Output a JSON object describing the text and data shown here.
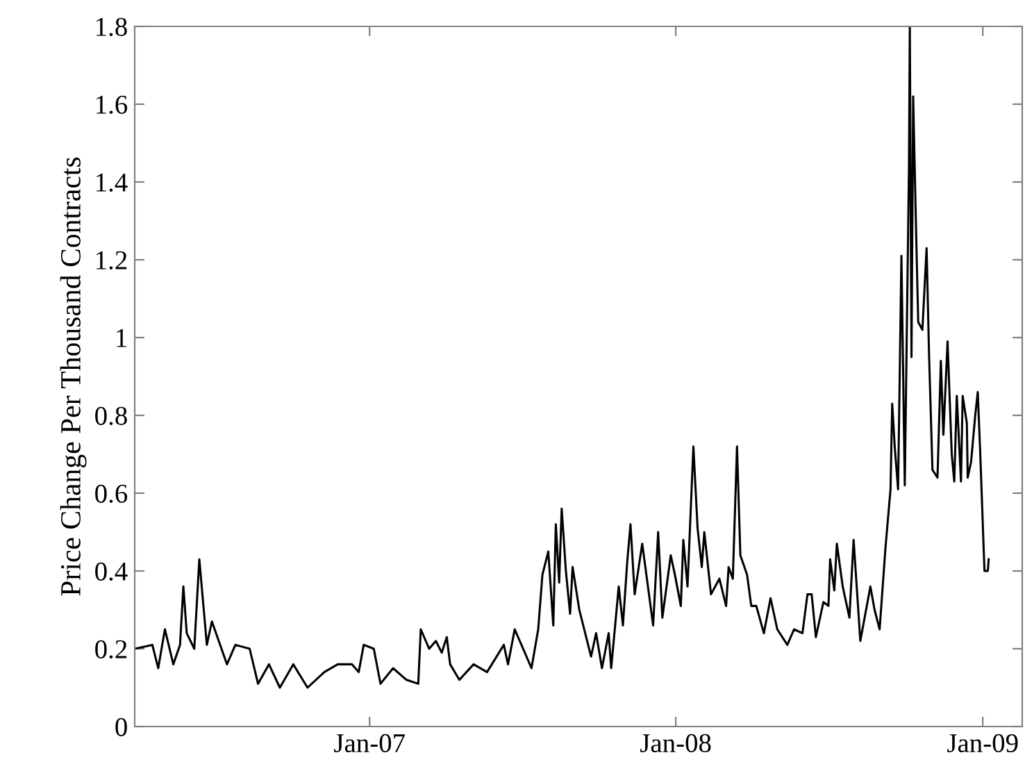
{
  "chart_data": {
    "type": "line",
    "ylabel": "Price Change Per Thousand Contracts",
    "xlim": [
      "2006-03-27",
      "2009-02-17"
    ],
    "ylim": [
      0,
      1.8
    ],
    "xticks": [
      {
        "value": "2007-01-01",
        "label": "Jan-07"
      },
      {
        "value": "2008-01-01",
        "label": "Jan-08"
      },
      {
        "value": "2009-01-01",
        "label": "Jan-09"
      }
    ],
    "yticks": [
      0,
      0.2,
      0.4,
      0.6,
      0.8,
      1,
      1.2,
      1.4,
      1.6,
      1.8
    ],
    "marker": "none",
    "line_style": "solid",
    "series": [
      {
        "color": "#000000",
        "x": [
          "2006-03-27",
          "2006-04-17",
          "2006-04-24",
          "2006-05-02",
          "2006-05-12",
          "2006-05-20",
          "2006-05-24",
          "2006-05-28",
          "2006-06-06",
          "2006-06-12",
          "2006-06-21",
          "2006-06-27",
          "2006-07-15",
          "2006-07-25",
          "2006-08-11",
          "2006-08-21",
          "2006-09-03",
          "2006-09-16",
          "2006-10-02",
          "2006-10-19",
          "2006-11-08",
          "2006-11-24",
          "2006-12-11",
          "2006-12-19",
          "2006-12-25",
          "2007-01-06",
          "2007-01-14",
          "2007-01-29",
          "2007-02-14",
          "2007-02-28",
          "2007-03-03",
          "2007-03-13",
          "2007-03-21",
          "2007-03-28",
          "2007-04-03",
          "2007-04-07",
          "2007-04-18",
          "2007-05-05",
          "2007-05-21",
          "2007-06-10",
          "2007-06-15",
          "2007-06-23",
          "2007-07-13",
          "2007-07-21",
          "2007-07-26",
          "2007-08-02",
          "2007-08-08",
          "2007-08-11",
          "2007-08-15",
          "2007-08-18",
          "2007-08-23",
          "2007-08-28",
          "2007-08-31",
          "2007-09-08",
          "2007-09-22",
          "2007-09-28",
          "2007-10-05",
          "2007-10-13",
          "2007-10-16",
          "2007-10-25",
          "2007-10-30",
          "2007-11-04",
          "2007-11-08",
          "2007-11-13",
          "2007-11-22",
          "2007-12-05",
          "2007-12-11",
          "2007-12-16",
          "2007-12-26",
          "2007-12-31",
          "2008-01-07",
          "2008-01-10",
          "2008-01-15",
          "2008-01-22",
          "2008-01-27",
          "2008-02-01",
          "2008-02-04",
          "2008-02-12",
          "2008-02-22",
          "2008-03-01",
          "2008-03-04",
          "2008-03-09",
          "2008-03-14",
          "2008-03-18",
          "2008-03-26",
          "2008-03-31",
          "2008-04-06",
          "2008-04-15",
          "2008-04-23",
          "2008-05-01",
          "2008-05-13",
          "2008-05-21",
          "2008-05-31",
          "2008-06-06",
          "2008-06-11",
          "2008-06-16",
          "2008-06-25",
          "2008-07-01",
          "2008-07-03",
          "2008-07-08",
          "2008-07-11",
          "2008-07-18",
          "2008-07-26",
          "2008-07-31",
          "2008-08-08",
          "2008-08-20",
          "2008-08-25",
          "2008-08-31",
          "2008-09-07",
          "2008-09-13",
          "2008-09-15",
          "2008-09-18",
          "2008-09-22",
          "2008-09-26",
          "2008-09-30",
          "2008-10-05",
          "2008-10-06",
          "2008-10-08",
          "2008-10-10",
          "2008-10-13",
          "2008-10-16",
          "2008-10-21",
          "2008-10-26",
          "2008-10-29",
          "2008-11-02",
          "2008-11-05",
          "2008-11-08",
          "2008-11-12",
          "2008-11-15",
          "2008-11-20",
          "2008-11-25",
          "2008-11-28",
          "2008-12-01",
          "2008-12-06",
          "2008-12-08",
          "2008-12-13",
          "2008-12-14",
          "2008-12-18",
          "2008-12-23",
          "2008-12-26",
          "2008-12-29",
          "2009-01-03",
          "2009-01-07",
          "2009-01-08"
        ],
        "values": [
          0.2,
          0.21,
          0.15,
          0.25,
          0.16,
          0.21,
          0.36,
          0.24,
          0.2,
          0.43,
          0.21,
          0.27,
          0.16,
          0.21,
          0.2,
          0.11,
          0.16,
          0.1,
          0.16,
          0.1,
          0.14,
          0.16,
          0.16,
          0.14,
          0.21,
          0.2,
          0.11,
          0.15,
          0.12,
          0.11,
          0.25,
          0.2,
          0.22,
          0.19,
          0.23,
          0.16,
          0.12,
          0.16,
          0.14,
          0.21,
          0.16,
          0.25,
          0.15,
          0.25,
          0.39,
          0.45,
          0.26,
          0.52,
          0.37,
          0.56,
          0.4,
          0.29,
          0.41,
          0.3,
          0.18,
          0.24,
          0.15,
          0.24,
          0.15,
          0.36,
          0.26,
          0.42,
          0.52,
          0.34,
          0.47,
          0.26,
          0.5,
          0.28,
          0.44,
          0.39,
          0.31,
          0.48,
          0.36,
          0.72,
          0.51,
          0.41,
          0.5,
          0.34,
          0.38,
          0.31,
          0.41,
          0.38,
          0.72,
          0.44,
          0.39,
          0.31,
          0.31,
          0.24,
          0.33,
          0.25,
          0.21,
          0.25,
          0.24,
          0.34,
          0.34,
          0.23,
          0.32,
          0.31,
          0.43,
          0.35,
          0.47,
          0.36,
          0.28,
          0.48,
          0.22,
          0.36,
          0.3,
          0.25,
          0.46,
          0.61,
          0.83,
          0.72,
          0.61,
          1.21,
          0.62,
          1.44,
          1.8,
          0.95,
          1.62,
          1.32,
          1.04,
          1.02,
          1.23,
          0.95,
          0.66,
          0.65,
          0.64,
          0.94,
          0.75,
          0.99,
          0.7,
          0.63,
          0.85,
          0.63,
          0.85,
          0.78,
          0.64,
          0.68,
          0.8,
          0.86,
          0.7,
          0.4,
          0.4,
          0.43
        ]
      }
    ]
  }
}
